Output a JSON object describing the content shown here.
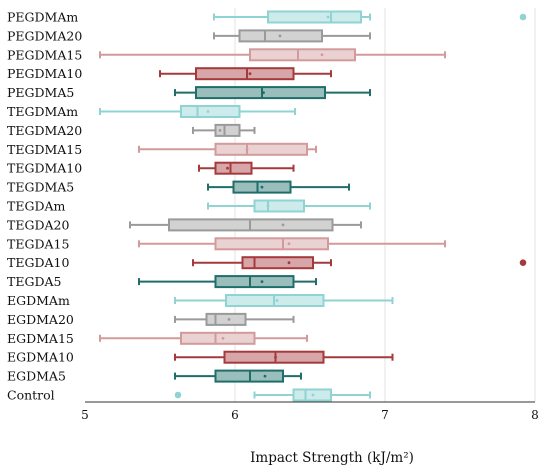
{
  "chart_data": {
    "type": "box",
    "xlabel": "Impact Strength (kJ/m²)",
    "ylabel": "",
    "title": "",
    "xlim": [
      5,
      8
    ],
    "xticks": [
      5,
      6,
      7,
      8
    ],
    "grid": "vertical",
    "orientation": "horizontal",
    "colors": {
      "PEGDMAm": "#8fd3d3",
      "PEGDMA20": "#9a9a9a",
      "PEGDMA15": "#d39a9c",
      "PEGDMA10": "#a53a3d",
      "PEGDMA5": "#1f6e6a",
      "TEGDMAm": "#8fd3d3",
      "TEGDMA20": "#9a9a9a",
      "TEGDMA15": "#d39a9c",
      "TEGDMA10": "#a53a3d",
      "TEGDMA5": "#1f6e6a",
      "TEGDAm": "#8fd3d3",
      "TEGDA20": "#9a9a9a",
      "TEGDA15": "#d39a9c",
      "TEGDA10": "#a53a3d",
      "TEGDA5": "#1f6e6a",
      "EGDMAm": "#8fd3d3",
      "EGDMA20": "#9a9a9a",
      "EGDMA15": "#d39a9c",
      "EGDMA10": "#a53a3d",
      "EGDMA5": "#1f6e6a",
      "Control": "#8fd3d3"
    },
    "categories": [
      "PEGDMAm",
      "PEGDMA20",
      "PEGDMA15",
      "PEGDMA10",
      "PEGDMA5",
      "TEGDMAm",
      "TEGDMA20",
      "TEGDMA15",
      "TEGDMA10",
      "TEGDMA5",
      "TEGDAm",
      "TEGDA20",
      "TEGDA15",
      "TEGDA10",
      "TEGDA5",
      "EGDMAm",
      "EGDMA20",
      "EGDMA15",
      "EGDMA10",
      "EGDMA5",
      "Control"
    ],
    "boxes": [
      {
        "category": "PEGDMAm",
        "min": 5.86,
        "q1": 6.22,
        "median": 6.64,
        "mean": 6.62,
        "q3": 6.84,
        "max": 6.9,
        "outliers": [
          7.92
        ]
      },
      {
        "category": "PEGDMA20",
        "min": 5.86,
        "q1": 6.03,
        "median": 6.2,
        "mean": 6.3,
        "q3": 6.58,
        "max": 6.9,
        "outliers": []
      },
      {
        "category": "PEGDMA15",
        "min": 5.1,
        "q1": 6.1,
        "median": 6.42,
        "mean": 6.58,
        "q3": 6.8,
        "max": 7.4,
        "outliers": []
      },
      {
        "category": "PEGDMA10",
        "min": 5.5,
        "q1": 5.74,
        "median": 6.08,
        "mean": 6.1,
        "q3": 6.39,
        "max": 6.64,
        "outliers": []
      },
      {
        "category": "PEGDMA5",
        "min": 5.6,
        "q1": 5.74,
        "median": 6.18,
        "mean": 6.19,
        "q3": 6.6,
        "max": 6.9,
        "outliers": []
      },
      {
        "category": "TEGDMAm",
        "min": 5.1,
        "q1": 5.64,
        "median": 5.75,
        "mean": 5.82,
        "q3": 6.03,
        "max": 6.4,
        "outliers": []
      },
      {
        "category": "TEGDMA20",
        "min": 5.72,
        "q1": 5.87,
        "median": 5.93,
        "mean": 5.9,
        "q3": 6.03,
        "max": 6.13,
        "outliers": []
      },
      {
        "category": "TEGDMA15",
        "min": 5.36,
        "q1": 5.87,
        "median": 6.08,
        "mean": 6.08,
        "q3": 6.48,
        "max": 6.54,
        "outliers": []
      },
      {
        "category": "TEGDMA10",
        "min": 5.76,
        "q1": 5.87,
        "median": 5.97,
        "mean": 5.95,
        "q3": 6.11,
        "max": 6.39,
        "outliers": []
      },
      {
        "category": "TEGDMA5",
        "min": 5.82,
        "q1": 5.99,
        "median": 6.15,
        "mean": 6.18,
        "q3": 6.37,
        "max": 6.76,
        "outliers": []
      },
      {
        "category": "TEGDAm",
        "min": 5.82,
        "q1": 6.13,
        "median": 6.22,
        "mean": 6.22,
        "q3": 6.46,
        "max": 6.9,
        "outliers": []
      },
      {
        "category": "TEGDA20",
        "min": 5.3,
        "q1": 5.56,
        "median": 6.1,
        "mean": 6.32,
        "q3": 6.65,
        "max": 6.84,
        "outliers": []
      },
      {
        "category": "TEGDA15",
        "min": 5.36,
        "q1": 5.87,
        "median": 6.32,
        "mean": 6.36,
        "q3": 6.62,
        "max": 7.4,
        "outliers": []
      },
      {
        "category": "TEGDA10",
        "min": 5.72,
        "q1": 6.05,
        "median": 6.13,
        "mean": 6.36,
        "q3": 6.52,
        "max": 6.64,
        "outliers": [
          7.92
        ]
      },
      {
        "category": "TEGDA5",
        "min": 5.36,
        "q1": 5.87,
        "median": 6.1,
        "mean": 6.18,
        "q3": 6.39,
        "max": 6.54,
        "outliers": []
      },
      {
        "category": "EGDMAm",
        "min": 5.6,
        "q1": 5.94,
        "median": 6.26,
        "mean": 6.28,
        "q3": 6.59,
        "max": 7.05,
        "outliers": []
      },
      {
        "category": "EGDMA20",
        "min": 5.6,
        "q1": 5.81,
        "median": 5.87,
        "mean": 5.96,
        "q3": 6.07,
        "max": 6.39,
        "outliers": []
      },
      {
        "category": "EGDMA15",
        "min": 5.1,
        "q1": 5.64,
        "median": 5.87,
        "mean": 5.92,
        "q3": 6.13,
        "max": 6.48,
        "outliers": []
      },
      {
        "category": "EGDMA10",
        "min": 5.6,
        "q1": 5.93,
        "median": 6.27,
        "mean": 6.27,
        "q3": 6.59,
        "max": 7.05,
        "outliers": []
      },
      {
        "category": "EGDMA5",
        "min": 5.6,
        "q1": 5.87,
        "median": 6.1,
        "mean": 6.2,
        "q3": 6.32,
        "max": 6.44,
        "outliers": []
      },
      {
        "category": "Control",
        "min": 6.13,
        "q1": 6.39,
        "median": 6.47,
        "mean": 6.52,
        "q3": 6.64,
        "max": 6.9,
        "outliers": [
          5.62
        ]
      }
    ]
  }
}
